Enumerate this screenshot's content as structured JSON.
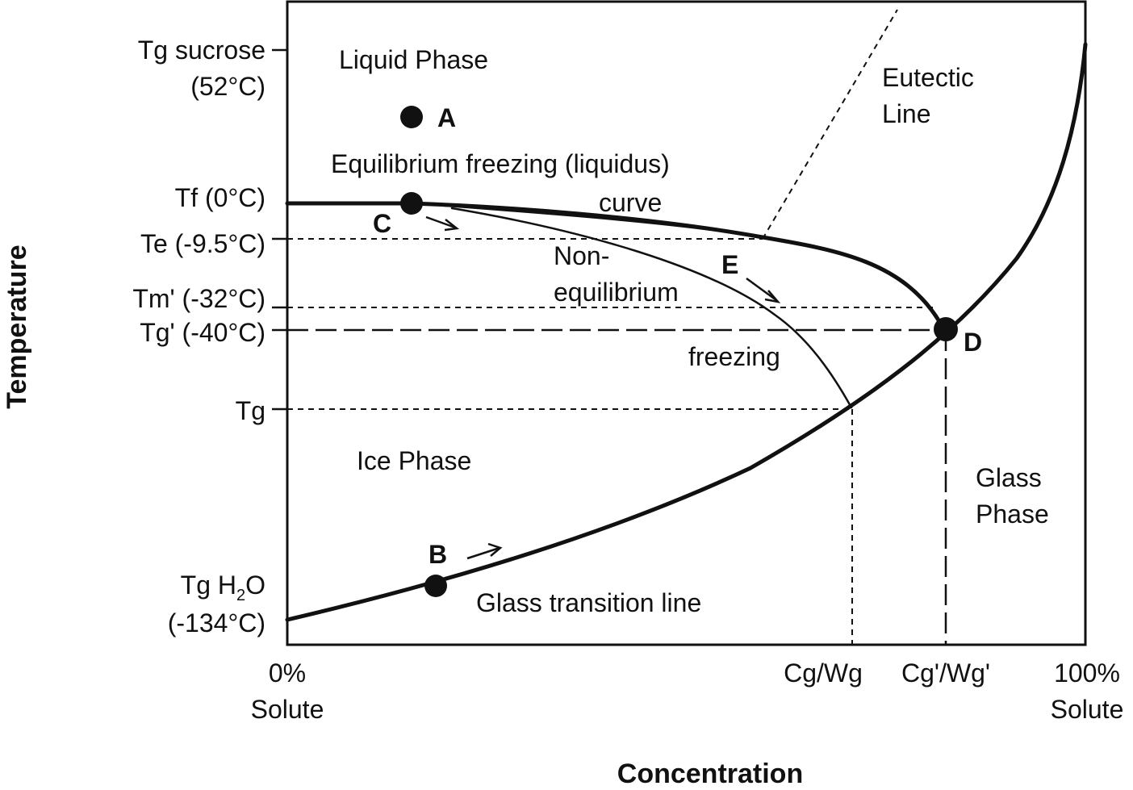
{
  "diagram": {
    "title": "",
    "x_axis_title": "Concentration",
    "y_axis_title": "Temperature",
    "y_ticks": {
      "tg_sucrose": {
        "name": "Tg sucrose",
        "value": "(52°C)"
      },
      "tf": "Tf (0°C)",
      "te": "Te (-9.5°C)",
      "tm_prime": "Tm' (-32°C)",
      "tg_prime": "Tg' (-40°C)",
      "tg": "Tg",
      "tg_h2o": {
        "prefix": "Tg H",
        "sub": "2",
        "suffix": "O",
        "value": "(-134°C)"
      }
    },
    "x_ticks": {
      "zero": {
        "pct": "0%",
        "word": "Solute"
      },
      "cg_wg": "Cg/Wg",
      "cg_prime_wg_prime": "Cg'/Wg'",
      "hundred": {
        "pct": "100%",
        "word": "Solute"
      }
    },
    "regions": {
      "liquid": "Liquid Phase",
      "ice": "Ice Phase",
      "glass_line1": "Glass",
      "glass_line2": "Phase",
      "eutectic_line1": "Eutectic",
      "eutectic_line2": "Line"
    },
    "curves": {
      "equilibrium_line1": "Equilibrium freezing (liquidus)",
      "equilibrium_line2": "curve",
      "nonequilibrium_line1": "Non-",
      "nonequilibrium_line2": "equilibrium",
      "nonequilibrium_line3": "freezing",
      "glass_transition": "Glass transition line"
    },
    "points": {
      "a": "A",
      "b": "B",
      "c": "C",
      "d": "D",
      "e": "E"
    },
    "colors": {
      "ink": "#111111",
      "background": "#ffffff"
    }
  }
}
